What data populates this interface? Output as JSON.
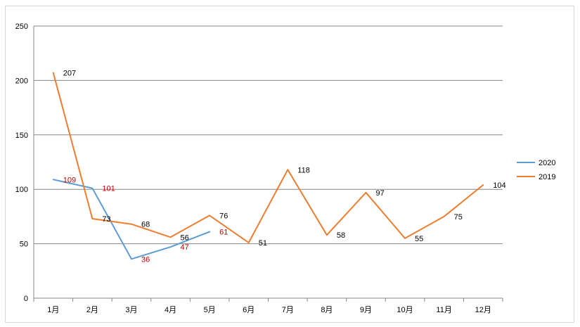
{
  "chart_data": {
    "type": "line",
    "categories": [
      "1月",
      "2月",
      "3月",
      "4月",
      "5月",
      "6月",
      "7月",
      "8月",
      "9月",
      "10月",
      "11月",
      "12月"
    ],
    "series": [
      {
        "name": "2020",
        "values": [
          109,
          101,
          36,
          47,
          61,
          null,
          null,
          null,
          null,
          null,
          null,
          null
        ],
        "color": "#5b9bd5",
        "label_color": "#c00000"
      },
      {
        "name": "2019",
        "values": [
          207,
          73,
          68,
          56,
          76,
          51,
          118,
          58,
          97,
          55,
          75,
          104
        ],
        "color": "#ed7d31",
        "label_color": "#000000"
      }
    ],
    "ylim": [
      0,
      250
    ],
    "yticks": [
      0,
      50,
      100,
      150,
      200,
      250
    ],
    "grid": true,
    "legend_position": "right"
  }
}
